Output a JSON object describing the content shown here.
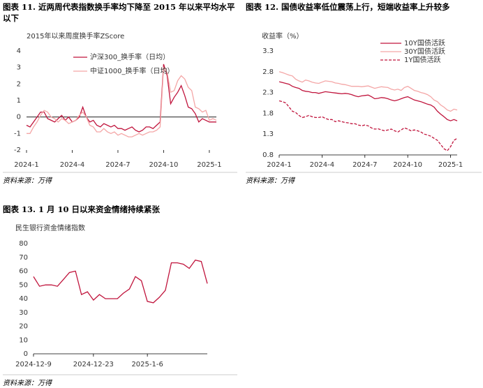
{
  "chart_data": [
    {
      "type": "line",
      "title": "图表 11. 近两周代表指数换手率均下降至 2015 年以来平均水平以下",
      "subtitle": "2015年以来周度换手率ZScore",
      "source": "资料来源：万得",
      "categories": [
        "2024-1",
        null,
        null,
        null,
        null,
        null,
        null,
        null,
        null,
        null,
        null,
        null,
        null,
        "2024-4",
        null,
        null,
        null,
        null,
        null,
        null,
        null,
        null,
        null,
        null,
        null,
        null,
        "2024-7",
        null,
        null,
        null,
        null,
        null,
        null,
        null,
        null,
        null,
        null,
        null,
        null,
        "2024-10",
        null,
        null,
        null,
        null,
        null,
        null,
        null,
        null,
        null,
        null,
        null,
        null,
        "2025-1",
        null,
        null
      ],
      "series": [
        {
          "name": "沪深300_换手率（日均）",
          "color": "#c0143c",
          "values": [
            -0.5,
            -0.6,
            -0.3,
            0.0,
            0.3,
            0.3,
            -0.1,
            -0.2,
            -0.3,
            -0.1,
            0.1,
            -0.2,
            0.0,
            -0.3,
            -0.2,
            0.0,
            0.6,
            0.0,
            -0.3,
            -0.2,
            -0.5,
            -0.6,
            -0.4,
            -0.5,
            -0.6,
            -0.5,
            -0.7,
            -0.7,
            -0.8,
            -0.7,
            -0.6,
            -0.8,
            -0.9,
            -0.8,
            -0.6,
            -0.6,
            -0.7,
            -0.5,
            -0.3,
            3.2,
            2.5,
            0.8,
            1.2,
            1.5,
            1.9,
            1.3,
            0.6,
            0.5,
            0.2,
            -0.3,
            -0.1,
            -0.2,
            -0.3,
            -0.3,
            -0.3
          ]
        },
        {
          "name": "中证1000_换手率（日均）",
          "color": "#f4a6a6",
          "values": [
            -1.0,
            -1.0,
            -0.6,
            -0.3,
            0.1,
            0.4,
            0.3,
            0.0,
            -0.1,
            -0.3,
            -0.1,
            -0.2,
            -0.4,
            -0.3,
            -0.2,
            0.1,
            0.3,
            0.0,
            -0.5,
            -0.6,
            -0.9,
            -0.9,
            -0.7,
            -0.9,
            -1.0,
            -0.9,
            -1.1,
            -1.0,
            -1.1,
            -1.2,
            -1.2,
            -1.1,
            -1.0,
            -1.1,
            -1.0,
            -0.9,
            -0.9,
            -0.8,
            -0.6,
            3.0,
            2.7,
            1.5,
            1.6,
            2.2,
            2.5,
            2.3,
            1.8,
            1.6,
            0.6,
            0.5,
            0.3,
            0.4,
            -0.2,
            -0.1,
            -0.2
          ]
        }
      ],
      "ylim": [
        -2,
        4
      ],
      "yticks": [
        -2,
        -1,
        0,
        1,
        2,
        3,
        4
      ],
      "grid": false
    },
    {
      "type": "line",
      "title": "图表 12. 国债收益率低位震荡上行，短端收益率上升较多",
      "subtitle": "收益率（%）",
      "source": "资料来源：万得",
      "categories": [
        "2024-1",
        null,
        null,
        null,
        null,
        null,
        null,
        null,
        null,
        null,
        null,
        null,
        null,
        "2024-4",
        null,
        null,
        null,
        null,
        null,
        null,
        null,
        null,
        null,
        null,
        null,
        null,
        "2024-7",
        null,
        null,
        null,
        null,
        null,
        null,
        null,
        null,
        null,
        null,
        null,
        null,
        "2024-10",
        null,
        null,
        null,
        null,
        null,
        null,
        null,
        null,
        null,
        null,
        null,
        null,
        "2025-1",
        null,
        null
      ],
      "series": [
        {
          "name": "10Y国债活跃",
          "color": "#c0143c",
          "dash": false,
          "values": [
            2.56,
            2.54,
            2.52,
            2.5,
            2.45,
            2.42,
            2.4,
            2.35,
            2.33,
            2.32,
            2.3,
            2.3,
            2.28,
            2.3,
            2.32,
            2.31,
            2.3,
            2.29,
            2.28,
            2.27,
            2.28,
            2.27,
            2.25,
            2.22,
            2.2,
            2.22,
            2.23,
            2.24,
            2.2,
            2.15,
            2.16,
            2.18,
            2.17,
            2.15,
            2.12,
            2.1,
            2.12,
            2.15,
            2.18,
            2.2,
            2.16,
            2.12,
            2.1,
            2.08,
            2.05,
            2.02,
            2.0,
            1.95,
            1.85,
            1.78,
            1.72,
            1.65,
            1.62,
            1.65,
            1.62
          ]
        },
        {
          "name": "30Y国债活跃",
          "color": "#f4a6a6",
          "dash": false,
          "values": [
            2.8,
            2.78,
            2.75,
            2.72,
            2.7,
            2.62,
            2.58,
            2.55,
            2.6,
            2.58,
            2.55,
            2.53,
            2.52,
            2.55,
            2.58,
            2.57,
            2.56,
            2.53,
            2.52,
            2.5,
            2.49,
            2.47,
            2.45,
            2.45,
            2.45,
            2.44,
            2.45,
            2.46,
            2.43,
            2.4,
            2.42,
            2.44,
            2.43,
            2.42,
            2.38,
            2.36,
            2.38,
            2.35,
            2.42,
            2.45,
            2.4,
            2.35,
            2.33,
            2.3,
            2.28,
            2.25,
            2.2,
            2.12,
            2.08,
            2.0,
            1.95,
            1.88,
            1.85,
            1.9,
            1.88
          ]
        },
        {
          "name": "1Y国债活跃",
          "color": "#c0143c",
          "dash": true,
          "values": [
            2.1,
            2.08,
            2.05,
            1.95,
            1.85,
            1.82,
            1.75,
            1.7,
            1.72,
            1.75,
            1.72,
            1.7,
            1.7,
            1.72,
            1.68,
            1.65,
            1.65,
            1.6,
            1.62,
            1.6,
            1.58,
            1.57,
            1.55,
            1.55,
            1.52,
            1.5,
            1.52,
            1.5,
            1.45,
            1.42,
            1.43,
            1.4,
            1.38,
            1.4,
            1.42,
            1.38,
            1.35,
            1.4,
            1.45,
            1.42,
            1.38,
            1.4,
            1.38,
            1.35,
            1.3,
            1.28,
            1.25,
            1.2,
            1.15,
            1.05,
            0.95,
            0.9,
            1.0,
            1.15,
            1.2
          ]
        }
      ],
      "ylim": [
        0.8,
        3.3
      ],
      "yticks": [
        0.8,
        1.3,
        1.8,
        2.3,
        2.8,
        3.3
      ],
      "grid": false
    },
    {
      "type": "line",
      "title": "图表 13. 1 月 10 日以来资金情绪持续紧张",
      "subtitle": "民生银行资金情绪指数",
      "source": "资料来源：万得",
      "categories": [
        "2024-12-9",
        null,
        null,
        null,
        null,
        null,
        null,
        null,
        null,
        null,
        "2024-12-23",
        null,
        null,
        null,
        null,
        null,
        null,
        null,
        null,
        "2025-1-6",
        null,
        null,
        null,
        null,
        null,
        null,
        null,
        null,
        null,
        null
      ],
      "series": [
        {
          "color": "#c0143c",
          "values": [
            56,
            49,
            50,
            50,
            49,
            54,
            59,
            60,
            43,
            45,
            39,
            43,
            40,
            40,
            40,
            44,
            47,
            56,
            53,
            38,
            37,
            41,
            46,
            66,
            66,
            65,
            62,
            68,
            67,
            51
          ]
        }
      ],
      "ylim": [
        0,
        80
      ],
      "yticks": [
        0,
        10,
        20,
        30,
        40,
        50,
        60,
        70,
        80
      ],
      "grid": false
    }
  ]
}
